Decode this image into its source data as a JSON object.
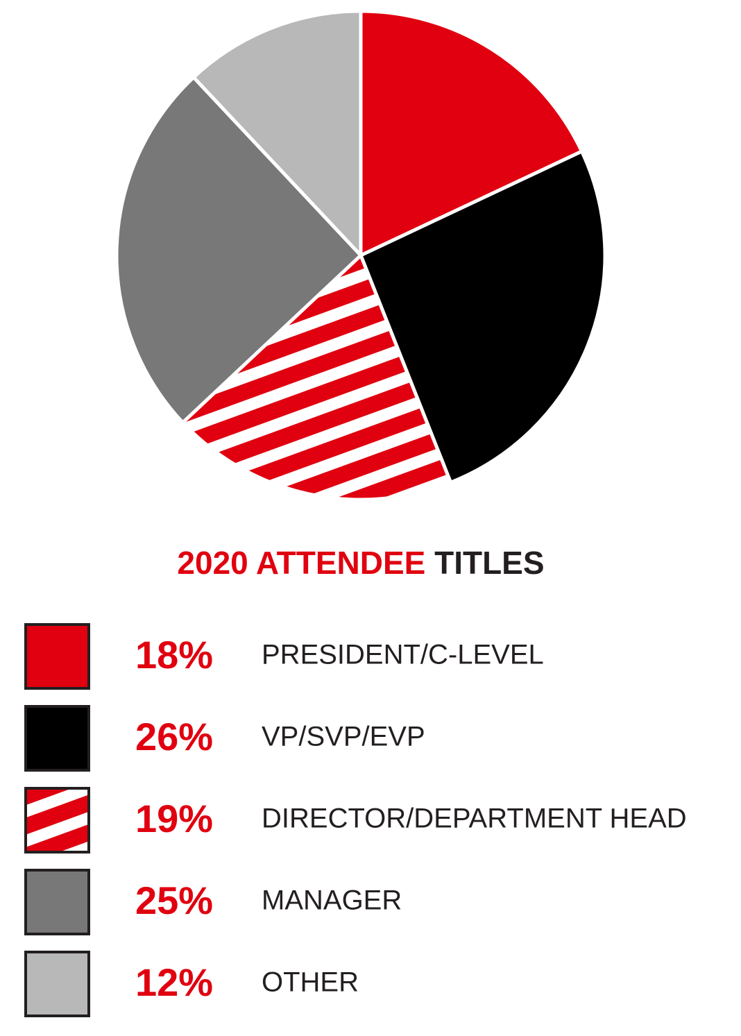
{
  "chart_data": {
    "type": "pie",
    "title": [
      "2020 ATTENDEE",
      "TITLES"
    ],
    "title_colors": [
      "#e0000f",
      "#231f20"
    ],
    "categories": [
      "PRESIDENT/C-LEVEL",
      "VP/SVP/EVP",
      "DIRECTOR/DEPARTMENT HEAD",
      "MANAGER",
      "OTHER"
    ],
    "values": [
      18,
      26,
      19,
      25,
      12
    ],
    "value_labels": [
      "18%",
      "26%",
      "19%",
      "25%",
      "12%"
    ],
    "colors": [
      "#e0000f",
      "#000000",
      "#e0000f",
      "#777877",
      "#b8b8b8"
    ],
    "patterns": [
      "solid",
      "solid",
      "striped",
      "solid",
      "solid"
    ]
  }
}
